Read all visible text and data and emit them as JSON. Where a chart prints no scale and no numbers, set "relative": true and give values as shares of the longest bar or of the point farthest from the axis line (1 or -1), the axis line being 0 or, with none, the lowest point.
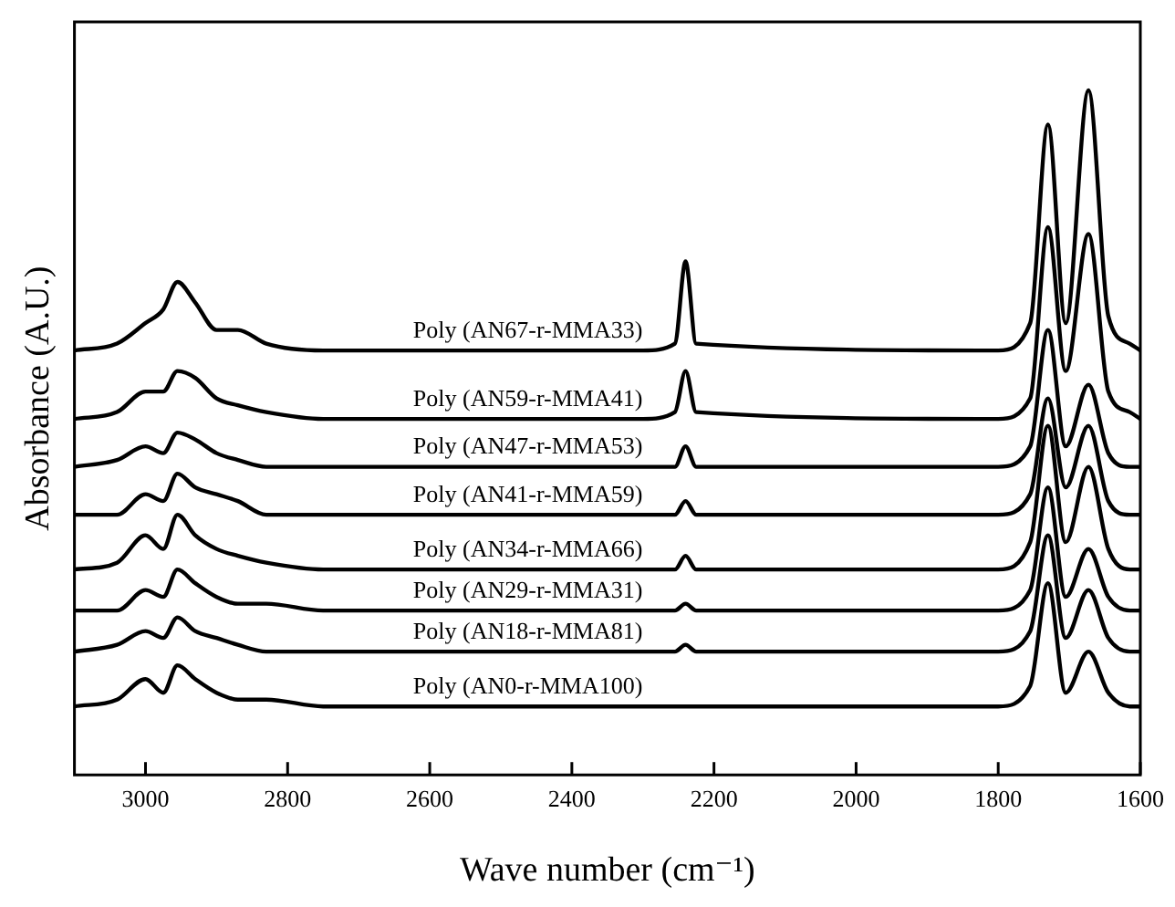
{
  "chart_data": {
    "type": "line",
    "relative": true,
    "xlabel": "Wave number (cm⁻¹)",
    "ylabel": "Absorbance (A.U.)",
    "x": [
      3100,
      3040,
      3000,
      2975,
      2955,
      2930,
      2900,
      2870,
      2830,
      2750,
      2300,
      2255,
      2240,
      2225,
      1800,
      1755,
      1730,
      1705,
      1673,
      1645,
      1615,
      1600
    ],
    "xlim": [
      3100,
      1600
    ],
    "xticks": [
      3000,
      2800,
      2600,
      2400,
      2200,
      2000,
      1800,
      1600
    ],
    "grid": false,
    "legend": false,
    "marker": "none",
    "line_style": "solid",
    "series": [
      {
        "name": "Poly (AN67-r-MMA33)",
        "color": "#000000",
        "values": [
          0.62,
          0.63,
          0.66,
          0.68,
          0.72,
          0.69,
          0.65,
          0.65,
          0.63,
          0.62,
          0.62,
          0.63,
          0.75,
          0.63,
          0.62,
          0.66,
          0.95,
          0.66,
          1.0,
          0.67,
          0.63,
          0.62
        ]
      },
      {
        "name": "Poly (AN59-r-MMA41)",
        "color": "#000000",
        "values": [
          0.52,
          0.53,
          0.56,
          0.56,
          0.59,
          0.58,
          0.55,
          0.54,
          0.53,
          0.52,
          0.52,
          0.53,
          0.59,
          0.53,
          0.52,
          0.55,
          0.8,
          0.59,
          0.79,
          0.56,
          0.53,
          0.52
        ]
      },
      {
        "name": "Poly (AN47-r-MMA53)",
        "color": "#000000",
        "values": [
          0.45,
          0.46,
          0.48,
          0.47,
          0.5,
          0.49,
          0.47,
          0.46,
          0.45,
          0.45,
          0.45,
          0.45,
          0.48,
          0.45,
          0.45,
          0.48,
          0.65,
          0.48,
          0.57,
          0.47,
          0.45,
          0.45
        ]
      },
      {
        "name": "Poly (AN41-r-MMA59)",
        "color": "#000000",
        "values": [
          0.38,
          0.38,
          0.41,
          0.4,
          0.44,
          0.42,
          0.41,
          0.4,
          0.38,
          0.38,
          0.38,
          0.38,
          0.4,
          0.38,
          0.38,
          0.41,
          0.55,
          0.42,
          0.51,
          0.4,
          0.38,
          0.38
        ]
      },
      {
        "name": "Poly (AN34-r-MMA66)",
        "color": "#000000",
        "values": [
          0.3,
          0.31,
          0.35,
          0.33,
          0.38,
          0.35,
          0.33,
          0.32,
          0.31,
          0.3,
          0.3,
          0.3,
          0.32,
          0.3,
          0.3,
          0.34,
          0.51,
          0.34,
          0.45,
          0.33,
          0.3,
          0.3
        ]
      },
      {
        "name": "Poly (AN29-r-MMA31)",
        "color": "#000000",
        "values": [
          0.24,
          0.24,
          0.27,
          0.26,
          0.3,
          0.28,
          0.26,
          0.25,
          0.25,
          0.24,
          0.24,
          0.24,
          0.25,
          0.24,
          0.24,
          0.27,
          0.42,
          0.26,
          0.33,
          0.26,
          0.24,
          0.24
        ]
      },
      {
        "name": "Poly (AN18-r-MMA81)",
        "color": "#000000",
        "values": [
          0.18,
          0.19,
          0.21,
          0.2,
          0.23,
          0.21,
          0.2,
          0.19,
          0.18,
          0.18,
          0.18,
          0.18,
          0.19,
          0.18,
          0.18,
          0.21,
          0.35,
          0.2,
          0.27,
          0.2,
          0.18,
          0.18
        ]
      },
      {
        "name": "Poly (AN0-r-MMA100)",
        "color": "#000000",
        "values": [
          0.1,
          0.11,
          0.14,
          0.12,
          0.16,
          0.14,
          0.12,
          0.11,
          0.11,
          0.1,
          0.1,
          0.1,
          0.1,
          0.1,
          0.1,
          0.13,
          0.28,
          0.12,
          0.18,
          0.12,
          0.1,
          0.1
        ]
      }
    ]
  }
}
